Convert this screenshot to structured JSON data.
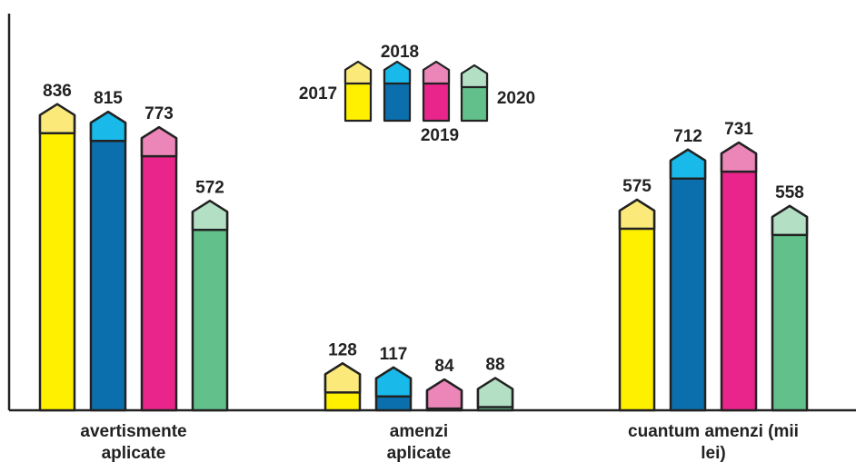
{
  "chart_data": {
    "type": "bar",
    "categories": [
      "avertismente aplicate",
      "amenzi aplicate",
      "cuantum amenzi (mii lei)"
    ],
    "series": [
      {
        "name": "2017",
        "color": "#fff000",
        "tip_color": "#fbe97a",
        "values": [
          836,
          128,
          575
        ]
      },
      {
        "name": "2018",
        "color": "#0b6fae",
        "tip_color": "#19b9ea",
        "values": [
          815,
          117,
          712
        ]
      },
      {
        "name": "2019",
        "color": "#e9248a",
        "tip_color": "#ec86b9",
        "values": [
          773,
          84,
          731
        ]
      },
      {
        "name": "2020",
        "color": "#62c08a",
        "tip_color": "#b3dfc4",
        "values": [
          572,
          88,
          558
        ]
      }
    ],
    "ylim": [
      0,
      880
    ]
  }
}
